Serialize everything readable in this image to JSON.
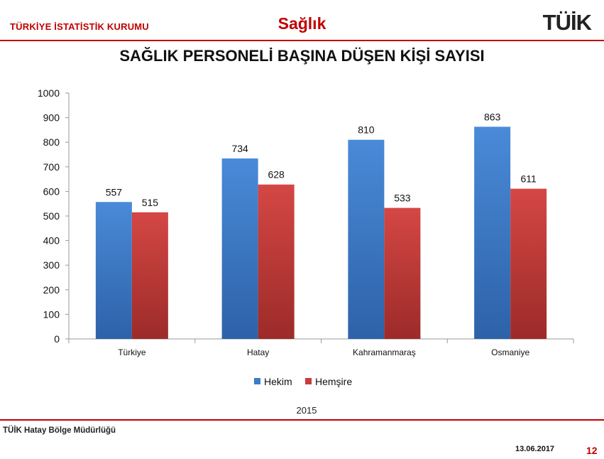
{
  "header": {
    "org_name": "TÜRKİYE İSTATİSTİK KURUMU",
    "section": "Sağlık",
    "logo_text": "TÜİK"
  },
  "footer": {
    "office": "TÜİK Hatay Bölge Müdürlüğü",
    "date": "13.06.2017",
    "page": "12"
  },
  "colors": {
    "accent": "#c00000",
    "hekim": "#3c7bc9",
    "hemsire": "#c83c3a"
  },
  "chart_data": {
    "type": "bar",
    "title": "SAĞLIK PERSONELİ BAŞINA DÜŞEN  KİŞİ SAYISI",
    "xlabel": "2015",
    "ylabel": "",
    "ylim": [
      0,
      1000
    ],
    "yticks": [
      0,
      100,
      200,
      300,
      400,
      500,
      600,
      700,
      800,
      900,
      1000
    ],
    "categories": [
      "Türkiye",
      "Hatay",
      "Kahramanmaraş",
      "Osmaniye"
    ],
    "series": [
      {
        "name": "Hekim",
        "color": "#3c7bc9",
        "values": [
          557,
          734,
          810,
          863
        ]
      },
      {
        "name": "Hemşire",
        "color": "#c83c3a",
        "values": [
          515,
          628,
          533,
          611
        ]
      }
    ],
    "legend_position": "bottom",
    "grid": false,
    "data_labels": true
  }
}
